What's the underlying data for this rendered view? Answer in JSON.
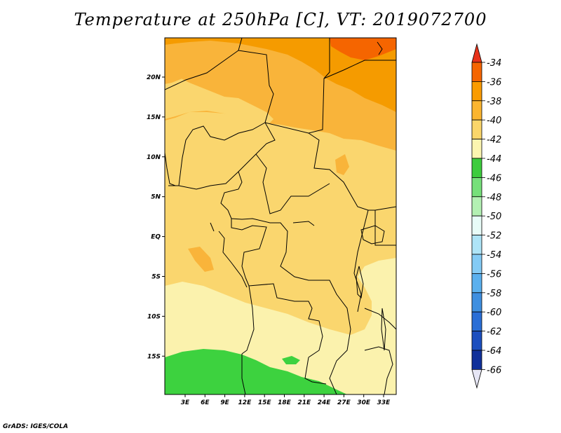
{
  "title": "Temperature at 250hPa [C], VT: 2019072700",
  "credit": "GrADS: IGES/COLA",
  "lat_ticks": [
    "20N",
    "15N",
    "10N",
    "5N",
    "EQ",
    "5S",
    "10S",
    "15S"
  ],
  "lon_ticks": [
    "3E",
    "6E",
    "9E",
    "12E",
    "15E",
    "18E",
    "21E",
    "24E",
    "27E",
    "30E",
    "33E"
  ],
  "colorbar": {
    "labels": [
      "-34",
      "-36",
      "-38",
      "-40",
      "-42",
      "-44",
      "-46",
      "-48",
      "-50",
      "-52",
      "-54",
      "-56",
      "-58",
      "-60",
      "-62",
      "-64",
      "-66"
    ],
    "colors": [
      "#e8321a",
      "#f56500",
      "#fa9b00",
      "#fbb530",
      "#fbd66a",
      "#fcf5b0",
      "#3dcc3d",
      "#76e07a",
      "#b3f0b3",
      "#e8fcf8",
      "#aee4f7",
      "#84cbf5",
      "#5bb0ee",
      "#3f8fe0",
      "#2a6ed6",
      "#1c4fbf",
      "#10309a",
      "#08116b"
    ]
  },
  "colors": {
    "c_36": "#f59b00",
    "c_38": "#f9b43a",
    "c_40": "#fad66e",
    "c_42": "#fbf2ad",
    "c_44": "#3dd23f"
  }
}
